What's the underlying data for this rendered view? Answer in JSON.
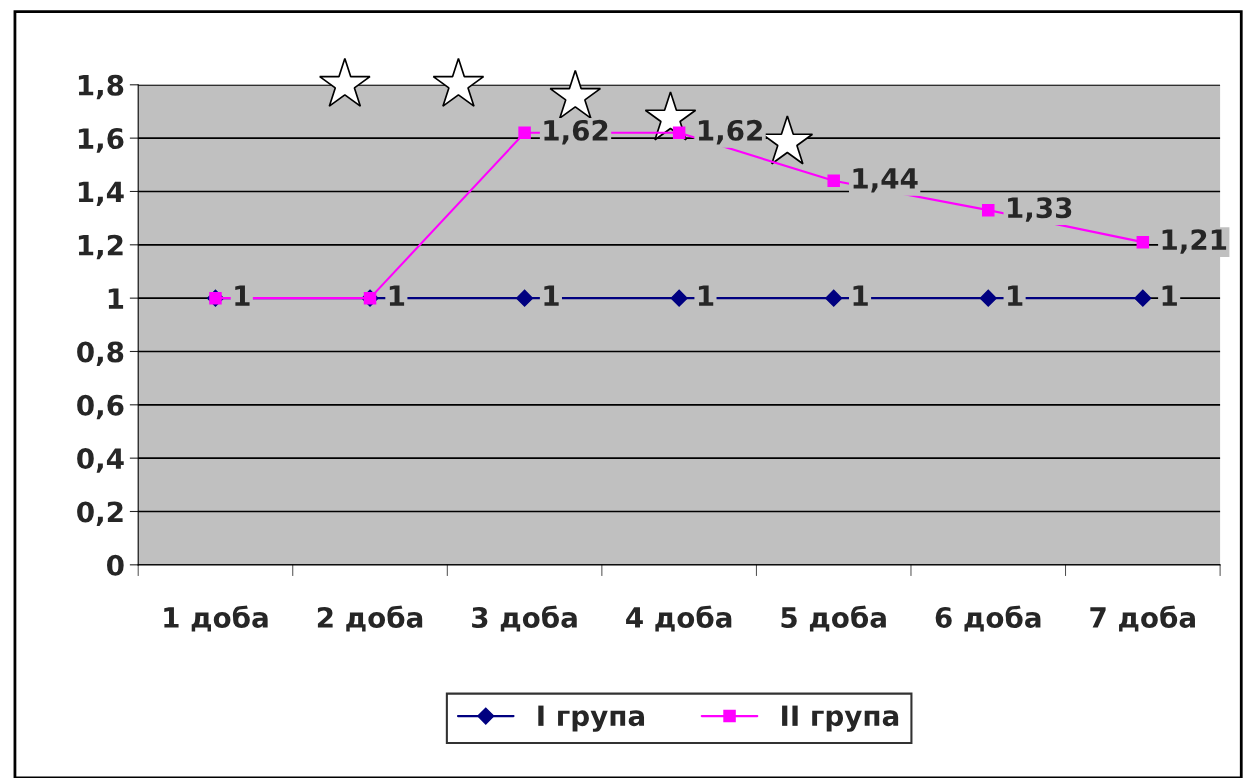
{
  "chart_data": {
    "type": "line",
    "categories": [
      "1 доба",
      "2 доба",
      "3 доба",
      "4 доба",
      "5 доба",
      "6 доба",
      "7 доба"
    ],
    "series": [
      {
        "name": "I група",
        "color": "#000080",
        "marker": "diamond",
        "values": [
          1,
          1,
          1,
          1,
          1,
          1,
          1
        ],
        "value_labels": [
          "1",
          "1",
          "1",
          "1",
          "1",
          "1",
          "1"
        ]
      },
      {
        "name": "II група",
        "color": "#ff00ff",
        "marker": "square",
        "values": [
          1,
          1,
          1.62,
          1.62,
          1.44,
          1.33,
          1.21
        ],
        "value_labels": [
          null,
          null,
          "1,62",
          "1,62",
          "1,44",
          "1,33",
          "1,21"
        ]
      }
    ],
    "ylim": [
      0,
      1.8
    ],
    "yticks": [
      0,
      {
        "value": 0.2,
        "label": "0,2"
      },
      {
        "value": 0.4,
        "label": "0,4"
      },
      {
        "value": 0.6,
        "label": "0,6"
      },
      {
        "value": 0.8,
        "label": "0,8"
      },
      1,
      {
        "value": 1.2,
        "label": "1,2"
      },
      {
        "value": 1.4,
        "label": "1,4"
      },
      {
        "value": 1.6,
        "label": "1,6"
      },
      {
        "value": 1.8,
        "label": "1,8"
      }
    ],
    "grid": "y",
    "legend": "bottom",
    "line_style": "solid"
  }
}
